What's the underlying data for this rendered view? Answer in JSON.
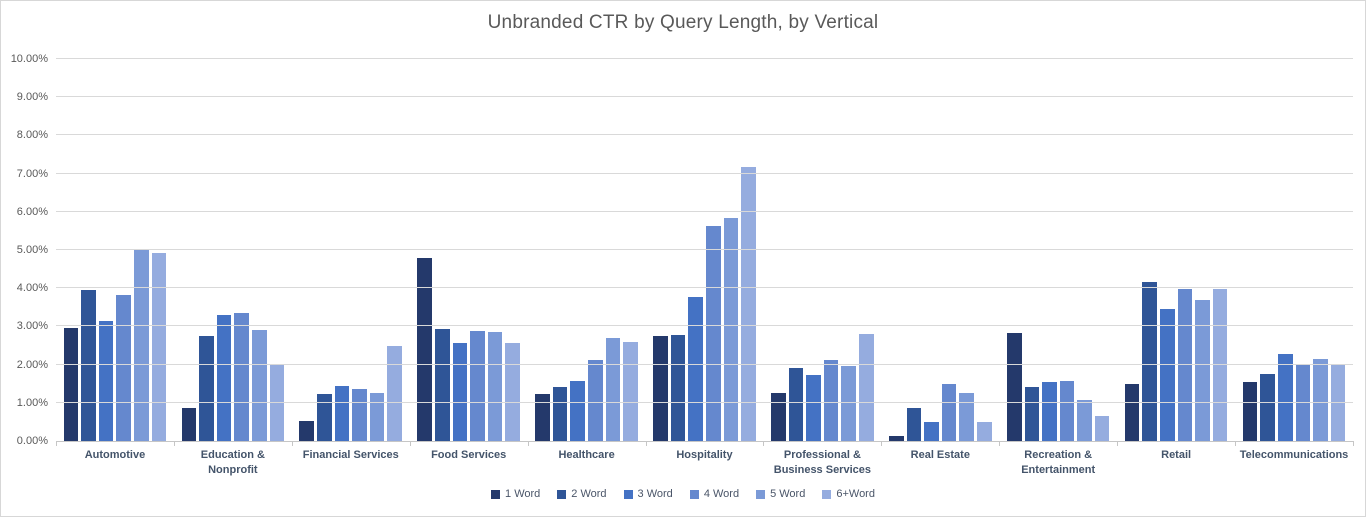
{
  "chart_data": {
    "type": "bar",
    "title": "Unbranded CTR by Query Length, by Vertical",
    "xlabel": "",
    "ylabel": "",
    "ylim": [
      0,
      10
    ],
    "y_tick_step": 1,
    "y_unit": "%",
    "y_tick_labels": [
      "0.00%",
      "1.00%",
      "2.00%",
      "3.00%",
      "4.00%",
      "5.00%",
      "6.00%",
      "7.00%",
      "8.00%",
      "9.00%",
      "10.00%"
    ],
    "grid": true,
    "legend_position": "bottom",
    "categories": [
      "Automotive",
      "Education & Nonprofit",
      "Financial Services",
      "Food Services",
      "Healthcare",
      "Hospitality",
      "Professional & Business Services",
      "Real Estate",
      "Recreation & Entertainment",
      "Retail",
      "Telecommunications"
    ],
    "series": [
      {
        "name": "1 Word",
        "color": "#24396B",
        "values": [
          2.97,
          0.87,
          0.52,
          4.78,
          1.23,
          2.75,
          1.27,
          0.12,
          2.84,
          1.49,
          1.55
        ]
      },
      {
        "name": "2 Word",
        "color": "#2F5597",
        "values": [
          3.95,
          2.74,
          1.23,
          2.92,
          1.42,
          2.77,
          1.91,
          0.86,
          1.42,
          4.17,
          1.76
        ]
      },
      {
        "name": "3 Word",
        "color": "#4472C4",
        "values": [
          3.15,
          3.3,
          1.43,
          2.56,
          1.56,
          3.76,
          1.72,
          0.5,
          1.55,
          3.46,
          2.27
        ]
      },
      {
        "name": "4 Word",
        "color": "#6588CE",
        "values": [
          3.81,
          3.36,
          1.37,
          2.89,
          2.13,
          5.62,
          2.13,
          1.5,
          1.57,
          3.98,
          2.02
        ]
      },
      {
        "name": "5 Word",
        "color": "#7B9AD7",
        "values": [
          5.02,
          2.91,
          1.27,
          2.85,
          2.69,
          5.84,
          1.96,
          1.26,
          1.07,
          3.69,
          2.15
        ]
      },
      {
        "name": "6+Word",
        "color": "#95ACDF",
        "values": [
          4.91,
          2.0,
          2.48,
          2.57,
          2.59,
          7.17,
          2.79,
          0.51,
          0.65,
          3.99,
          2.02
        ]
      }
    ]
  }
}
